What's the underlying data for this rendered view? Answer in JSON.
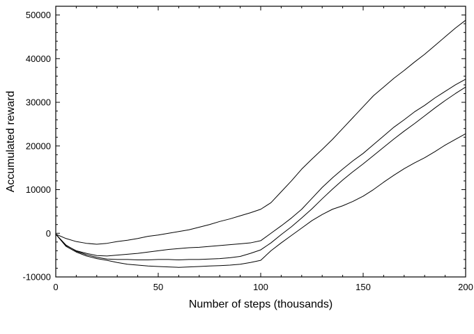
{
  "chart_data": {
    "type": "line",
    "title": "",
    "xlabel": "Number of steps (thousands)",
    "ylabel": "Accumulated reward",
    "xlim": [
      0,
      200
    ],
    "ylim": [
      -10000,
      52000
    ],
    "x_ticks": [
      0,
      50,
      100,
      150,
      200
    ],
    "y_ticks": [
      -10000,
      0,
      10000,
      20000,
      30000,
      40000,
      50000
    ],
    "x_tick_labels": [
      "0",
      "50",
      "100",
      "150",
      "200"
    ],
    "y_tick_labels": [
      "-10000",
      "0",
      "10000",
      "20000",
      "30000",
      "40000",
      "50000"
    ],
    "grid": false,
    "legend": "none",
    "line_color": "#000000",
    "series": [
      {
        "x": [
          0,
          5,
          10,
          15,
          20,
          25,
          30,
          35,
          40,
          45,
          50,
          55,
          60,
          65,
          70,
          75,
          80,
          85,
          90,
          95,
          100,
          105,
          110,
          115,
          120,
          125,
          130,
          135,
          140,
          145,
          150,
          155,
          160,
          165,
          170,
          175,
          180,
          185,
          190,
          195,
          200
        ],
        "y": [
          -200,
          -1200,
          -1900,
          -2300,
          -2500,
          -2300,
          -1900,
          -1600,
          -1200,
          -700,
          -400,
          0,
          400,
          800,
          1400,
          2000,
          2700,
          3300,
          4000,
          4700,
          5500,
          7000,
          9500,
          12000,
          14700,
          17000,
          19200,
          21500,
          24000,
          26500,
          29000,
          31500,
          33500,
          35500,
          37300,
          39200,
          41000,
          43000,
          45000,
          47000,
          48800
        ]
      },
      {
        "x": [
          0,
          5,
          10,
          15,
          20,
          25,
          30,
          35,
          40,
          45,
          50,
          55,
          60,
          65,
          70,
          75,
          80,
          85,
          90,
          95,
          100,
          105,
          110,
          115,
          120,
          125,
          130,
          135,
          140,
          145,
          150,
          155,
          160,
          165,
          170,
          175,
          180,
          185,
          190,
          195,
          200
        ],
        "y": [
          -200,
          -2800,
          -4000,
          -4600,
          -5100,
          -5200,
          -5000,
          -4800,
          -4600,
          -4300,
          -4000,
          -3700,
          -3500,
          -3300,
          -3200,
          -3000,
          -2800,
          -2600,
          -2400,
          -2200,
          -1700,
          0,
          1700,
          3500,
          5500,
          8000,
          10500,
          12700,
          14700,
          16600,
          18300,
          20300,
          22300,
          24300,
          26000,
          27800,
          29300,
          31000,
          32500,
          34000,
          35300
        ]
      },
      {
        "x": [
          0,
          5,
          10,
          15,
          20,
          25,
          30,
          35,
          40,
          45,
          50,
          55,
          60,
          65,
          70,
          75,
          80,
          85,
          90,
          95,
          100,
          105,
          110,
          115,
          120,
          125,
          130,
          135,
          140,
          145,
          150,
          155,
          160,
          165,
          170,
          175,
          180,
          185,
          190,
          195,
          200
        ],
        "y": [
          -200,
          -2700,
          -4100,
          -4900,
          -5500,
          -5900,
          -6000,
          -6000,
          -6100,
          -6100,
          -6000,
          -6000,
          -6100,
          -6000,
          -6000,
          -5900,
          -5800,
          -5600,
          -5300,
          -4600,
          -3800,
          -2200,
          -300,
          1500,
          3500,
          5600,
          7900,
          10100,
          12200,
          14100,
          15900,
          17800,
          19700,
          21600,
          23400,
          25100,
          26900,
          28700,
          30400,
          32000,
          33500
        ]
      },
      {
        "x": [
          0,
          5,
          10,
          15,
          20,
          25,
          30,
          35,
          40,
          45,
          50,
          55,
          60,
          65,
          70,
          75,
          80,
          85,
          90,
          95,
          100,
          105,
          110,
          115,
          120,
          125,
          130,
          135,
          140,
          145,
          150,
          155,
          160,
          165,
          170,
          175,
          180,
          185,
          190,
          195,
          200
        ],
        "y": [
          -200,
          -3000,
          -4300,
          -5200,
          -5800,
          -6200,
          -6700,
          -7100,
          -7300,
          -7500,
          -7600,
          -7700,
          -7800,
          -7700,
          -7600,
          -7500,
          -7400,
          -7300,
          -7100,
          -6700,
          -6200,
          -4000,
          -2200,
          -500,
          1200,
          2900,
          4300,
          5500,
          6300,
          7300,
          8500,
          10000,
          11700,
          13300,
          14800,
          16100,
          17300,
          18700,
          20200,
          21500,
          22800
        ]
      }
    ]
  }
}
